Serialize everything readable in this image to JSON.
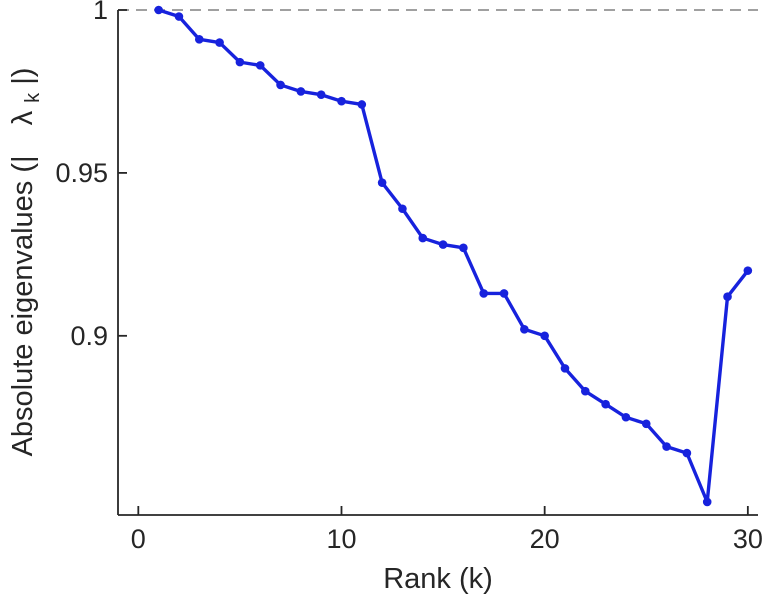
{
  "chart_data": {
    "type": "line",
    "title": "",
    "xlabel": "Rank (k)",
    "ylabel_parts": {
      "prefix": "Absolute eigenvalues (|",
      "lambda": "λ",
      "sub": "k",
      "suffix": "|)"
    },
    "x": [
      1,
      2,
      3,
      4,
      5,
      6,
      7,
      8,
      9,
      10,
      11,
      12,
      13,
      14,
      15,
      16,
      17,
      18,
      19,
      20,
      21,
      22,
      23,
      24,
      25,
      26,
      27,
      28,
      29,
      30
    ],
    "values": [
      1.0,
      0.998,
      0.991,
      0.99,
      0.984,
      0.983,
      0.977,
      0.975,
      0.974,
      0.972,
      0.971,
      0.947,
      0.939,
      0.93,
      0.928,
      0.927,
      0.913,
      0.913,
      0.902,
      0.9,
      0.89,
      0.883,
      0.879,
      0.875,
      0.873,
      0.866,
      0.864,
      0.849,
      0.912,
      0.92
    ],
    "xlim": [
      -1,
      30.5
    ],
    "ylim": [
      0.845,
      1.0
    ],
    "xticks": [
      0,
      10,
      20,
      30
    ],
    "xtick_labels": [
      "0",
      "10",
      "20",
      "30"
    ],
    "yticks": [
      0.9,
      0.95,
      1
    ],
    "ytick_labels": [
      "0.9",
      "0.95",
      "1"
    ],
    "grid": false,
    "legend": null,
    "reference_line": {
      "y": 1,
      "style": "dashed",
      "color": "#808080"
    },
    "line_color": "#1722dd",
    "marker": "circle",
    "axis_color": "#262626"
  }
}
